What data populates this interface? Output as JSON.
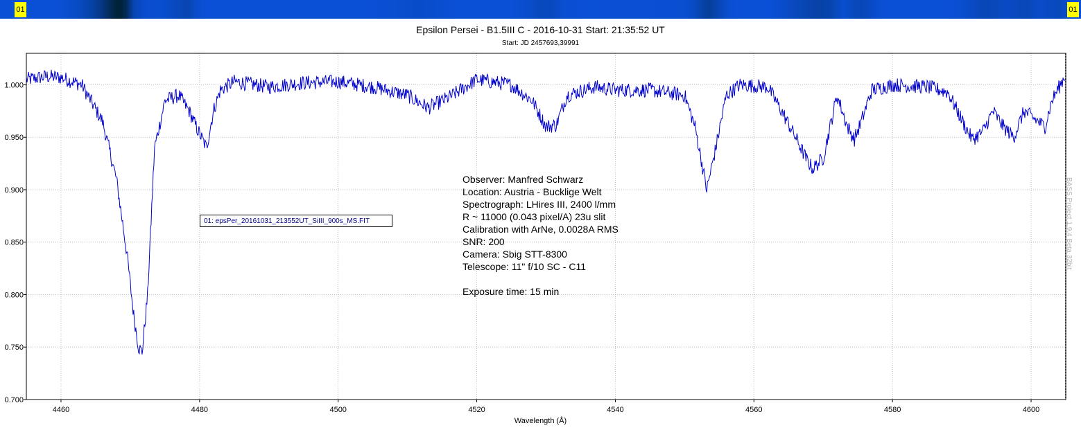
{
  "header": {
    "left_badge": "01",
    "right_badge": "01"
  },
  "chart_data": {
    "type": "line",
    "title": "Epsilon Persei - B1.5III C - 2016-10-31 Start: 21:35:52 UT",
    "subtitle": "Start: JD 2457693,39991",
    "xlabel": "Wavelength (Å)",
    "ylabel": "",
    "xlim": [
      4455,
      4605
    ],
    "ylim": [
      0.7,
      1.03
    ],
    "x_ticks": [
      4460,
      4480,
      4500,
      4520,
      4540,
      4560,
      4580,
      4600
    ],
    "y_ticks": [
      0.7,
      0.75,
      0.8,
      0.85,
      0.9,
      0.95,
      1.0
    ],
    "y_tick_labels": [
      "0.700",
      "0.750",
      "0.800",
      "0.850",
      "0.900",
      "0.950",
      "1.000"
    ],
    "grid": true,
    "line_color": "#0000cc",
    "series": [
      {
        "name": "01: epsPer_20161031_213552UT_SiIII_900s_MS.FIT",
        "continuum": 1.0,
        "noise_amplitude": 0.007,
        "x": [
          4455,
          4458,
          4460,
          4463,
          4466,
          4468,
          4469.5,
          4470.5,
          4471.2,
          4471.7,
          4472.5,
          4473.5,
          4475,
          4477,
          4478.5,
          4479.5,
          4481,
          4482,
          4483,
          4485,
          4490,
          4495,
          4500,
          4505,
          4510,
          4513,
          4516,
          4520,
          4525,
          4528,
          4530,
          4531.5,
          4533,
          4537,
          4540,
          4545,
          4550,
          4551.5,
          4552.5,
          4553.2,
          4554.5,
          4556,
          4558,
          4562,
          4564,
          4566,
          4567.5,
          4568.5,
          4570,
          4572,
          4573.5,
          4574.5,
          4575.5,
          4577,
          4580,
          4585,
          4588,
          4590.5,
          4591.5,
          4593,
          4594.5,
          4596,
          4597.5,
          4599,
          4601,
          4602,
          4603,
          4605
        ],
        "y": [
          1.005,
          1.008,
          1.007,
          1.0,
          0.965,
          0.91,
          0.84,
          0.78,
          0.75,
          0.745,
          0.8,
          0.94,
          0.985,
          0.99,
          0.975,
          0.96,
          0.94,
          0.975,
          0.995,
          1.003,
          0.998,
          1.002,
          1.003,
          0.998,
          0.99,
          0.978,
          0.988,
          1.005,
          1.0,
          0.985,
          0.96,
          0.962,
          0.99,
          0.998,
          0.995,
          0.995,
          0.99,
          0.96,
          0.925,
          0.9,
          0.94,
          0.99,
          1.0,
          0.998,
          0.975,
          0.95,
          0.93,
          0.92,
          0.93,
          0.99,
          0.96,
          0.948,
          0.965,
          0.995,
          1.0,
          0.998,
          0.993,
          0.96,
          0.948,
          0.955,
          0.975,
          0.96,
          0.95,
          0.975,
          0.965,
          0.96,
          0.985,
          1.01
        ]
      }
    ],
    "annotations": [
      "Observer: Manfred Schwarz",
      "Location: Austria - Bucklige Welt",
      "Spectrograph: LHires III, 2400 l/mm",
      "R ~ 11000 (0.043 pixel/A) 23u slit",
      "Calibration with ArNe, 0.0028A RMS",
      "SNR: 200",
      "Camera: Sbig STT-8300",
      "Telescope: 11\" f/10 SC - C11",
      "",
      "Exposure time: 15 min"
    ],
    "watermark": "BASS Project 1.9.4 Beta 32bit"
  }
}
